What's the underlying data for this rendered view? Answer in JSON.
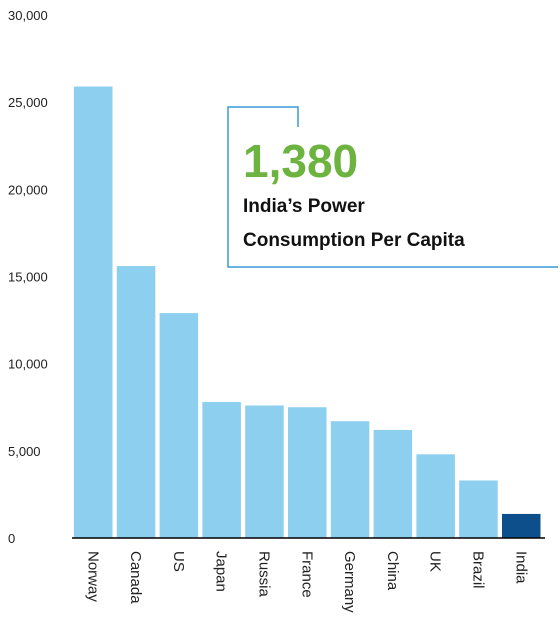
{
  "chart_data": {
    "type": "bar",
    "categories": [
      "Norway",
      "Canada",
      "US",
      "Japan",
      "Russia",
      "France",
      "Germany",
      "China",
      "UK",
      "Brazil",
      "India"
    ],
    "values": [
      25900,
      15600,
      12900,
      7800,
      7600,
      7500,
      6700,
      6200,
      4800,
      3300,
      1380
    ],
    "ylim": [
      0,
      30000
    ],
    "yticks": [
      0,
      5000,
      10000,
      15000,
      20000,
      25000,
      30000
    ],
    "ytick_labels": [
      "0",
      "5,000",
      "10,000",
      "15,000",
      "20,000",
      "25,000",
      "30,000"
    ],
    "grid": false,
    "highlight_index": 10,
    "colors": {
      "bar": "#8dcfee",
      "highlight": "#0d4f8b",
      "callout_value": "#6cb33f",
      "callout_border": "#3a9ad9",
      "axis": "#000000"
    },
    "callout": {
      "value": "1,380",
      "line1": "India’s Power",
      "line2": "Consumption Per Capita"
    }
  }
}
